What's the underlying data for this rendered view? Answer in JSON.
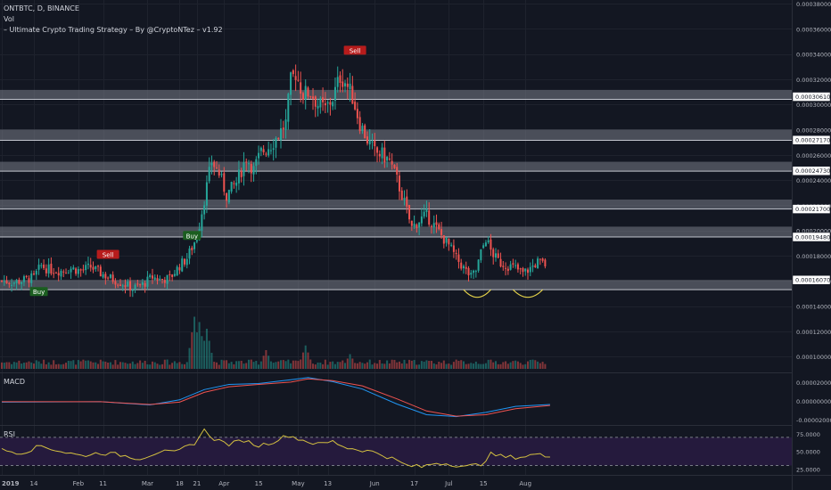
{
  "header": {
    "symbol_line": "ONTBTC, D, BINANCE",
    "vol_label": "Vol",
    "strategy_label": "– Ultimate Crypto Trading Strategy – By @CryptoNTez – v1.92"
  },
  "colors": {
    "background": "#131722",
    "up": "#26a69a",
    "down": "#ef5350",
    "macd_line": "#2196f3",
    "signal_line": "#ef5350",
    "rsi_line": "#d4c040",
    "rsi_band": "#251a3d",
    "zone": "#787b86",
    "axis_text": "#b2b5be",
    "grid": "#1e222d"
  },
  "chart_data": [
    {
      "type": "candlestick",
      "panel": "price",
      "x_labels": [
        "2019",
        "14",
        "Feb",
        "11",
        "Mar",
        "18",
        "21",
        "Apr",
        "15",
        "May",
        "13",
        "Jun",
        "17",
        "Jul",
        "15",
        "Aug"
      ],
      "x_label_days": [
        0,
        13,
        31,
        41,
        59,
        72,
        79,
        90,
        104,
        120,
        132,
        151,
        167,
        181,
        195,
        212
      ],
      "x_range_days": [
        0,
        222
      ],
      "ylim": [
        9.3e-05,
        0.00038
      ],
      "y_ticks": [
        "0.00010000",
        "0.00012000",
        "0.00014000",
        "0.00016000",
        "0.00018000",
        "0.00020000",
        "0.00022000",
        "0.00024000",
        "0.00026000",
        "0.00028000",
        "0.00030000",
        "0.00032000",
        "0.00034000",
        "0.00036000",
        "0.00038000"
      ],
      "zone_levels": [
        "0.00030610",
        "0.00027170",
        "0.00024730",
        "0.00021700",
        "0.00019480",
        "0.00016070"
      ],
      "zones": [
        [
          0.000304,
          0.0003115
        ],
        [
          0.0002715,
          0.00028
        ],
        [
          0.000247,
          0.0002545
        ],
        [
          0.000217,
          0.0002245
        ],
        [
          0.0001948,
          0.000203
        ],
        [
          0.000153,
          0.0001607
        ]
      ],
      "signals": [
        {
          "label": "Buy",
          "day": 15,
          "price": 0.0001515,
          "side": "buy"
        },
        {
          "label": "Sell",
          "day": 43,
          "price": 0.000181,
          "side": "sell"
        },
        {
          "label": "Buy",
          "day": 77,
          "price": 0.000196,
          "side": "buy"
        },
        {
          "label": "Sell",
          "day": 143,
          "price": 0.000343,
          "side": "sell"
        }
      ],
      "pattern_arcs": [
        {
          "day_start": 187,
          "day_end": 198,
          "price_top": 0.000153,
          "price_bottom": 0.0001475
        },
        {
          "day_start": 207,
          "day_end": 219,
          "price_top": 0.000153,
          "price_bottom": 0.0001475
        }
      ],
      "anchors": [
        [
          0,
          0.00016
        ],
        [
          5,
          0.000159
        ],
        [
          10,
          0.000161
        ],
        [
          13,
          0.000163
        ],
        [
          16,
          0.000172
        ],
        [
          19,
          0.000169
        ],
        [
          24,
          0.000168
        ],
        [
          28,
          0.00017
        ],
        [
          32,
          0.000168
        ],
        [
          36,
          0.000171
        ],
        [
          40,
          0.000166
        ],
        [
          44,
          0.000162
        ],
        [
          49,
          0.000158
        ],
        [
          53,
          0.000154
        ],
        [
          57,
          0.000157
        ],
        [
          61,
          0.000163
        ],
        [
          64,
          0.000161
        ],
        [
          68,
          0.000162
        ],
        [
          72,
          0.000172
        ],
        [
          75,
          0.000178
        ],
        [
          79,
          0.000195
        ],
        [
          82,
          0.000225
        ],
        [
          85,
          0.000255
        ],
        [
          88,
          0.000245
        ],
        [
          91,
          0.000228
        ],
        [
          95,
          0.000238
        ],
        [
          99,
          0.000258
        ],
        [
          102,
          0.000248
        ],
        [
          105,
          0.000262
        ],
        [
          109,
          0.000268
        ],
        [
          112,
          0.000276
        ],
        [
          115,
          0.000285
        ],
        [
          117,
          0.000318
        ],
        [
          119,
          0.000325
        ],
        [
          122,
          0.000308
        ],
        [
          125,
          0.00031
        ],
        [
          128,
          0.0003
        ],
        [
          131,
          0.000296
        ],
        [
          134,
          0.000305
        ],
        [
          137,
          0.000322
        ],
        [
          139,
          0.000318
        ],
        [
          142,
          0.000306
        ],
        [
          145,
          0.000285
        ],
        [
          148,
          0.000272
        ],
        [
          151,
          0.000262
        ],
        [
          154,
          0.00026
        ],
        [
          157,
          0.000255
        ],
        [
          160,
          0.00024
        ],
        [
          163,
          0.000222
        ],
        [
          166,
          0.000202
        ],
        [
          169,
          0.000208
        ],
        [
          172,
          0.000212
        ],
        [
          175,
          0.000204
        ],
        [
          178,
          0.000196
        ],
        [
          181,
          0.000188
        ],
        [
          184,
          0.000178
        ],
        [
          187,
          0.00017
        ],
        [
          190,
          0.000163
        ],
        [
          192,
          0.000168
        ],
        [
          194,
          0.000182
        ],
        [
          196,
          0.000194
        ],
        [
          198,
          0.000184
        ],
        [
          200,
          0.000178
        ],
        [
          202,
          0.000174
        ],
        [
          205,
          0.000172
        ],
        [
          208,
          0.00017
        ],
        [
          211,
          0.000166
        ],
        [
          214,
          0.00017
        ],
        [
          217,
          0.000175
        ],
        [
          220,
          0.000173
        ]
      ],
      "volume": {
        "ylim": [
          0,
          80
        ],
        "spikes": [
          [
            78,
            78
          ],
          [
            80,
            70
          ],
          [
            83,
            60
          ],
          [
            107,
            28
          ],
          [
            123,
            35
          ],
          [
            141,
            22
          ],
          [
            197,
            12
          ],
          [
            216,
            13
          ]
        ]
      }
    },
    {
      "type": "line",
      "panel": "macd",
      "label": "MACD",
      "y_ticks": [
        "0.00002000",
        "0.00000000",
        "-0.00002000"
      ],
      "ylim": [
        -2.5e-05,
        2.85e-05
      ],
      "series": [
        {
          "color": "macd_line",
          "points": [
            [
              0,
              -1.5e-06
            ],
            [
              40,
              -1e-06
            ],
            [
              60,
              -4.5e-06
            ],
            [
              72,
              1e-06
            ],
            [
              82,
              1.2e-05
            ],
            [
              92,
              1.75e-05
            ],
            [
              104,
              1.85e-05
            ],
            [
              117,
              2.25e-05
            ],
            [
              124,
              2.5e-05
            ],
            [
              134,
              2.05e-05
            ],
            [
              146,
              1.25e-05
            ],
            [
              160,
              -3.5e-06
            ],
            [
              172,
              -1.5e-05
            ],
            [
              184,
              -1.7e-05
            ],
            [
              196,
              -1.25e-05
            ],
            [
              208,
              -6e-06
            ],
            [
              222,
              -4e-06
            ]
          ]
        },
        {
          "color": "signal_line",
          "points": [
            [
              0,
              -1e-06
            ],
            [
              40,
              -1e-06
            ],
            [
              60,
              -4e-06
            ],
            [
              72,
              -1.5e-06
            ],
            [
              82,
              9e-06
            ],
            [
              92,
              1.5e-05
            ],
            [
              104,
              1.75e-05
            ],
            [
              117,
              2e-05
            ],
            [
              124,
              2.35e-05
            ],
            [
              134,
              2.15e-05
            ],
            [
              146,
              1.6e-05
            ],
            [
              160,
              2e-06
            ],
            [
              172,
              -1.1e-05
            ],
            [
              184,
              -1.65e-05
            ],
            [
              196,
              -1.5e-05
            ],
            [
              208,
              -8.5e-06
            ],
            [
              222,
              -5e-06
            ]
          ]
        }
      ]
    },
    {
      "type": "line",
      "panel": "rsi",
      "label": "RSI",
      "y_ticks": [
        "75.0000",
        "50.0000",
        "25.0000"
      ],
      "ylim": [
        18,
        85
      ],
      "band": [
        30,
        70
      ],
      "series": [
        {
          "color": "rsi_line",
          "points": [
            [
              0,
              52
            ],
            [
              8,
              48
            ],
            [
              16,
              58
            ],
            [
              24,
              50
            ],
            [
              32,
              44
            ],
            [
              40,
              48
            ],
            [
              48,
              45
            ],
            [
              56,
              40
            ],
            [
              64,
              50
            ],
            [
              70,
              48
            ],
            [
              78,
              62
            ],
            [
              82,
              80
            ],
            [
              86,
              68
            ],
            [
              92,
              60
            ],
            [
              98,
              66
            ],
            [
              104,
              58
            ],
            [
              110,
              64
            ],
            [
              116,
              73
            ],
            [
              120,
              68
            ],
            [
              128,
              60
            ],
            [
              134,
              64
            ],
            [
              140,
              55
            ],
            [
              146,
              52
            ],
            [
              152,
              48
            ],
            [
              158,
              40
            ],
            [
              164,
              30
            ],
            [
              170,
              28
            ],
            [
              176,
              34
            ],
            [
              182,
              32
            ],
            [
              188,
              28
            ],
            [
              194,
              32
            ],
            [
              198,
              46
            ],
            [
              204,
              42
            ],
            [
              210,
              42
            ],
            [
              216,
              46
            ],
            [
              222,
              42
            ]
          ]
        }
      ]
    }
  ]
}
